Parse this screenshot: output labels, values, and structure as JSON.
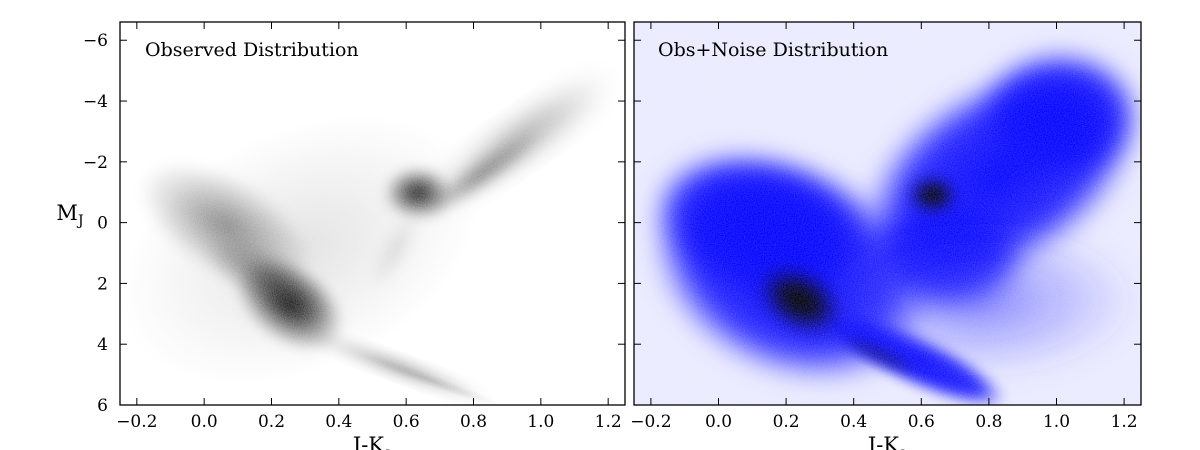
{
  "chart_data": [
    {
      "type": "heatmap",
      "title": "Observed Distribution",
      "xlabel": "J-Ks",
      "ylabel": "MJ",
      "xlim": [
        -0.25,
        1.25
      ],
      "ylim": [
        6,
        -6.6
      ],
      "y_axis_inverted": true,
      "x_ticks": [
        "−0.2",
        "0.0",
        "0.2",
        "0.4",
        "0.6",
        "0.8",
        "1.0",
        "1.2"
      ],
      "x_tick_values": [
        -0.2,
        0.0,
        0.2,
        0.4,
        0.6,
        0.8,
        1.0,
        1.2
      ],
      "y_ticks": [
        "−6",
        "−4",
        "−2",
        "0",
        "2",
        "4",
        "6"
      ],
      "y_tick_values": [
        -6,
        -4,
        -2,
        0,
        2,
        4,
        6
      ],
      "colormap": "white-to-black",
      "density_features": [
        {
          "feature": "main-sequence-peak",
          "x": 0.28,
          "y": 2.7
        },
        {
          "feature": "red-clump",
          "x": 0.64,
          "y": -0.9
        },
        {
          "feature": "main-sequence-tail",
          "x": 0.8,
          "y": 5.6
        },
        {
          "feature": "giant-branch-tip",
          "x": 1.2,
          "y": -4.8
        }
      ],
      "grid": false
    },
    {
      "type": "heatmap",
      "title": "Obs+Noise Distribution",
      "xlabel": "J-Ks",
      "ylabel": "",
      "xlim": [
        -0.25,
        1.25
      ],
      "ylim": [
        6,
        -6.6
      ],
      "y_axis_inverted": true,
      "x_ticks": [
        "−0.2",
        "0.0",
        "0.2",
        "0.4",
        "0.6",
        "0.8",
        "1.0",
        "1.2"
      ],
      "x_tick_values": [
        -0.2,
        0.0,
        0.2,
        0.4,
        0.6,
        0.8,
        1.0,
        1.2
      ],
      "y_ticks": [],
      "colormap": "white-blue-black",
      "colors": {
        "low": "#ffffff",
        "mid": "#0000ff",
        "high": "#000000"
      },
      "density_features": [
        {
          "feature": "main-sequence-peak",
          "x": 0.28,
          "y": 2.7
        },
        {
          "feature": "red-clump",
          "x": 0.64,
          "y": -0.9
        }
      ],
      "grid": false
    }
  ]
}
